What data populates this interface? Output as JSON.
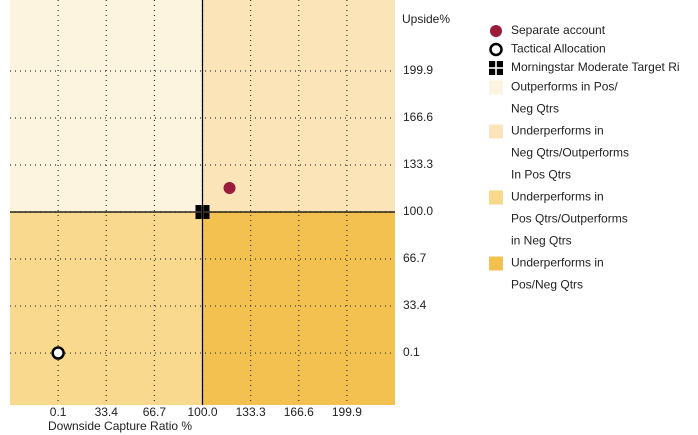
{
  "chart_data": {
    "type": "scatter",
    "x_label": "Downside Capture Ratio %",
    "y_label": "Upside%",
    "xlim": [
      -33.2,
      233.2
    ],
    "ylim": [
      -36.7,
      250.2
    ],
    "xticks": [
      {
        "value": 0.1,
        "label": "0.1"
      },
      {
        "value": 33.4,
        "label": "33.4"
      },
      {
        "value": 66.7,
        "label": "66.7"
      },
      {
        "value": 100,
        "label": "100.0"
      },
      {
        "value": 133.3,
        "label": "133.3"
      },
      {
        "value": 166.6,
        "label": "166.6"
      },
      {
        "value": 199.9,
        "label": "199.9"
      }
    ],
    "yticks": [
      {
        "value": 0.1,
        "label": "0.1"
      },
      {
        "value": 33.4,
        "label": "33.4"
      },
      {
        "value": 66.7,
        "label": "66.7"
      },
      {
        "value": 100,
        "label": "100.0"
      },
      {
        "value": 133.3,
        "label": "133.3"
      },
      {
        "value": 166.6,
        "label": "166.6"
      },
      {
        "value": 199.9,
        "label": "199.9"
      }
    ],
    "grid": true,
    "crosshair": [
      100,
      100
    ],
    "series": [
      {
        "name": "Separate account",
        "marker": "dot",
        "color": "#9b1b3a",
        "x": [
          118.7
        ],
        "values": [
          117
        ]
      },
      {
        "name": "Tactical Allocation",
        "marker": "ring",
        "color": "#000000",
        "x": [
          0.1
        ],
        "values": [
          0.1
        ]
      },
      {
        "name": "Morningstar Moderate Target Ri",
        "marker": "quad",
        "color": "#000000",
        "x": [
          100
        ],
        "values": [
          100
        ]
      }
    ],
    "quadrants": [
      {
        "corner": "top-left",
        "color": "#fdf4e0",
        "label_lines": [
          "Outperforms in Pos/",
          "Neg Qtrs"
        ]
      },
      {
        "corner": "top-right",
        "color": "#fbe5b8",
        "label_lines": [
          "Underperforms in",
          "Neg Qtrs/Outperforms",
          "In Pos Qtrs"
        ]
      },
      {
        "corner": "bottom-left",
        "color": "#f9d98d",
        "label_lines": [
          "Underperforms in",
          "Pos Qtrs/Outperforms",
          "in Neg Qtrs"
        ]
      },
      {
        "corner": "bottom-right",
        "color": "#f3c14f",
        "label_lines": [
          "Underperforms in",
          "Pos/Neg Qtrs"
        ]
      }
    ]
  }
}
